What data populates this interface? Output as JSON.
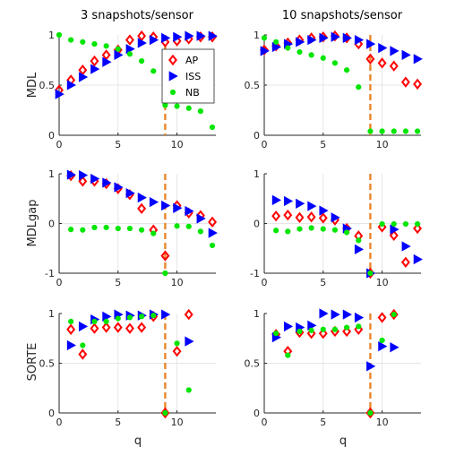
{
  "colors": {
    "AP": "#ff0000",
    "ISS": "#0000ff",
    "NB": "#00e600",
    "threshold": "#e8862b",
    "grid": "#e6e6e6",
    "axis": "#262626"
  },
  "legend": {
    "placement": "top-right of first panel",
    "entries": [
      {
        "name": "AP",
        "marker": "diamond"
      },
      {
        "name": "ISS",
        "marker": "triangle-right"
      },
      {
        "name": "NB",
        "marker": "circle"
      }
    ]
  },
  "columns": [
    {
      "title": "3 snapshots/sensor"
    },
    {
      "title": "10 snapshots/sensor"
    }
  ],
  "rows": [
    {
      "ylabel": "MDL"
    },
    {
      "ylabel": "MDLgap"
    },
    {
      "ylabel": "SORTE"
    }
  ],
  "xlabel": "q",
  "chart_data": [
    {
      "type": "scatter",
      "title": "3 snapshots/sensor",
      "ylabel": "MDL",
      "xlim": [
        0,
        13.3
      ],
      "ylim": [
        0,
        1
      ],
      "xticks": [
        0,
        5,
        10
      ],
      "yticks": [
        0,
        0.5,
        1
      ],
      "vline_x": 9,
      "show_legend": true,
      "series": [
        {
          "name": "AP",
          "points": [
            [
              0,
              0.45
            ],
            [
              1,
              0.55
            ],
            [
              2,
              0.65
            ],
            [
              3,
              0.74
            ],
            [
              4,
              0.8
            ],
            [
              5,
              0.85
            ],
            [
              6,
              0.95
            ],
            [
              7,
              0.99
            ],
            [
              8,
              0.98
            ],
            [
              9,
              0.93
            ],
            [
              10,
              0.94
            ],
            [
              11,
              0.96
            ],
            [
              12,
              0.98
            ],
            [
              13,
              0.98
            ]
          ]
        },
        {
          "name": "ISS",
          "points": [
            [
              0,
              0.41
            ],
            [
              1,
              0.5
            ],
            [
              2,
              0.58
            ],
            [
              3,
              0.66
            ],
            [
              4,
              0.73
            ],
            [
              5,
              0.8
            ],
            [
              6,
              0.86
            ],
            [
              7,
              0.92
            ],
            [
              8,
              0.95
            ],
            [
              9,
              0.97
            ],
            [
              10,
              0.98
            ],
            [
              11,
              0.99
            ],
            [
              12,
              0.99
            ],
            [
              13,
              0.99
            ]
          ]
        },
        {
          "name": "NB",
          "points": [
            [
              0,
              1.0
            ],
            [
              1,
              0.95
            ],
            [
              2,
              0.93
            ],
            [
              3,
              0.91
            ],
            [
              4,
              0.89
            ],
            [
              5,
              0.86
            ],
            [
              6,
              0.81
            ],
            [
              7,
              0.74
            ],
            [
              8,
              0.64
            ],
            [
              9,
              0.3
            ],
            [
              10,
              0.29
            ],
            [
              11,
              0.27
            ],
            [
              12,
              0.24
            ],
            [
              13,
              0.08
            ]
          ]
        }
      ]
    },
    {
      "type": "scatter",
      "title": "10 snapshots/sensor",
      "ylabel": "MDL",
      "xlim": [
        0,
        13.3
      ],
      "ylim": [
        0,
        1
      ],
      "xticks": [
        0,
        5,
        10
      ],
      "yticks": [
        0,
        0.5,
        1
      ],
      "vline_x": 9,
      "show_legend": false,
      "series": [
        {
          "name": "AP",
          "points": [
            [
              0,
              0.85
            ],
            [
              1,
              0.89
            ],
            [
              2,
              0.92
            ],
            [
              3,
              0.95
            ],
            [
              4,
              0.97
            ],
            [
              5,
              0.98
            ],
            [
              6,
              0.99
            ],
            [
              7,
              0.97
            ],
            [
              8,
              0.91
            ],
            [
              9,
              0.76
            ],
            [
              10,
              0.72
            ],
            [
              11,
              0.69
            ],
            [
              12,
              0.53
            ],
            [
              13,
              0.51
            ]
          ]
        },
        {
          "name": "ISS",
          "points": [
            [
              0,
              0.84
            ],
            [
              1,
              0.88
            ],
            [
              2,
              0.91
            ],
            [
              3,
              0.93
            ],
            [
              4,
              0.95
            ],
            [
              5,
              0.97
            ],
            [
              6,
              0.98
            ],
            [
              7,
              0.97
            ],
            [
              8,
              0.95
            ],
            [
              9,
              0.91
            ],
            [
              10,
              0.87
            ],
            [
              11,
              0.84
            ],
            [
              12,
              0.8
            ],
            [
              13,
              0.76
            ]
          ]
        },
        {
          "name": "NB",
          "points": [
            [
              0,
              0.97
            ],
            [
              1,
              0.93
            ],
            [
              2,
              0.87
            ],
            [
              3,
              0.83
            ],
            [
              4,
              0.8
            ],
            [
              5,
              0.77
            ],
            [
              6,
              0.72
            ],
            [
              7,
              0.65
            ],
            [
              8,
              0.48
            ],
            [
              9,
              0.04
            ],
            [
              10,
              0.04
            ],
            [
              11,
              0.04
            ],
            [
              12,
              0.04
            ],
            [
              13,
              0.04
            ]
          ]
        }
      ]
    },
    {
      "type": "scatter",
      "title": "",
      "ylabel": "MDLgap",
      "xlim": [
        0,
        13.3
      ],
      "ylim": [
        -1,
        1
      ],
      "xticks": [
        0,
        5,
        10
      ],
      "yticks": [
        -1,
        0,
        1
      ],
      "vline_x": 9,
      "show_legend": false,
      "series": [
        {
          "name": "AP",
          "points": [
            [
              1,
              0.96
            ],
            [
              2,
              0.85
            ],
            [
              3,
              0.85
            ],
            [
              4,
              0.8
            ],
            [
              5,
              0.7
            ],
            [
              6,
              0.58
            ],
            [
              7,
              0.3
            ],
            [
              8,
              -0.13
            ],
            [
              9,
              -0.65
            ],
            [
              10,
              0.36
            ],
            [
              11,
              0.21
            ],
            [
              12,
              0.16
            ],
            [
              13,
              0.03
            ]
          ]
        },
        {
          "name": "ISS",
          "points": [
            [
              1,
              0.98
            ],
            [
              2,
              0.97
            ],
            [
              3,
              0.9
            ],
            [
              4,
              0.82
            ],
            [
              5,
              0.73
            ],
            [
              6,
              0.61
            ],
            [
              7,
              0.52
            ],
            [
              8,
              0.43
            ],
            [
              9,
              0.36
            ],
            [
              10,
              0.31
            ],
            [
              11,
              0.25
            ],
            [
              12,
              0.1
            ],
            [
              13,
              -0.19
            ]
          ]
        },
        {
          "name": "NB",
          "points": [
            [
              1,
              -0.12
            ],
            [
              2,
              -0.13
            ],
            [
              3,
              -0.08
            ],
            [
              4,
              -0.08
            ],
            [
              5,
              -0.1
            ],
            [
              6,
              -0.1
            ],
            [
              7,
              -0.13
            ],
            [
              8,
              -0.2
            ],
            [
              9,
              -1.0
            ],
            [
              10,
              -0.05
            ],
            [
              11,
              -0.06
            ],
            [
              12,
              -0.16
            ],
            [
              13,
              -0.44
            ]
          ]
        }
      ]
    },
    {
      "type": "scatter",
      "title": "",
      "ylabel": "MDLgap",
      "xlim": [
        0,
        13.3
      ],
      "ylim": [
        -1,
        1
      ],
      "xticks": [
        0,
        5,
        10
      ],
      "yticks": [
        -1,
        0,
        1
      ],
      "vline_x": 9,
      "show_legend": false,
      "series": [
        {
          "name": "AP",
          "points": [
            [
              1,
              0.15
            ],
            [
              2,
              0.17
            ],
            [
              3,
              0.12
            ],
            [
              4,
              0.13
            ],
            [
              5,
              0.11
            ],
            [
              6,
              0.07
            ],
            [
              7,
              -0.1
            ],
            [
              8,
              -0.25
            ],
            [
              9,
              -1.0
            ],
            [
              10,
              -0.07
            ],
            [
              11,
              -0.24
            ],
            [
              12,
              -0.78
            ],
            [
              13,
              -0.1
            ]
          ]
        },
        {
          "name": "ISS",
          "points": [
            [
              1,
              0.47
            ],
            [
              2,
              0.45
            ],
            [
              3,
              0.4
            ],
            [
              4,
              0.35
            ],
            [
              5,
              0.26
            ],
            [
              6,
              0.12
            ],
            [
              7,
              -0.1
            ],
            [
              8,
              -0.52
            ],
            [
              9,
              -1.0
            ],
            [
              11,
              -0.12
            ],
            [
              12,
              -0.46
            ],
            [
              13,
              -0.72
            ]
          ]
        },
        {
          "name": "NB",
          "points": [
            [
              1,
              -0.14
            ],
            [
              2,
              -0.16
            ],
            [
              3,
              -0.11
            ],
            [
              4,
              -0.09
            ],
            [
              5,
              -0.11
            ],
            [
              6,
              -0.13
            ],
            [
              7,
              -0.18
            ],
            [
              8,
              -0.34
            ],
            [
              9,
              -1.0
            ],
            [
              10,
              -0.01
            ],
            [
              11,
              -0.01
            ],
            [
              12,
              -0.01
            ],
            [
              13,
              -0.01
            ]
          ]
        }
      ]
    },
    {
      "type": "scatter",
      "title": "",
      "ylabel": "SORTE",
      "xlim": [
        0,
        13.3
      ],
      "ylim": [
        0,
        1
      ],
      "xticks": [
        0,
        5,
        10
      ],
      "yticks": [
        0,
        0.5,
        1
      ],
      "vline_x": 9,
      "show_legend": false,
      "series": [
        {
          "name": "AP",
          "points": [
            [
              1,
              0.84
            ],
            [
              2,
              0.59
            ],
            [
              3,
              0.85
            ],
            [
              4,
              0.86
            ],
            [
              5,
              0.86
            ],
            [
              6,
              0.85
            ],
            [
              7,
              0.86
            ],
            [
              8,
              0.97
            ],
            [
              9,
              0.0
            ],
            [
              10,
              0.62
            ],
            [
              11,
              0.99
            ]
          ]
        },
        {
          "name": "ISS",
          "points": [
            [
              1,
              0.68
            ],
            [
              2,
              0.87
            ],
            [
              3,
              0.94
            ],
            [
              4,
              0.97
            ],
            [
              5,
              0.99
            ],
            [
              6,
              0.98
            ],
            [
              7,
              0.98
            ],
            [
              8,
              0.99
            ],
            [
              9,
              0.99
            ],
            [
              11,
              0.72
            ]
          ]
        },
        {
          "name": "NB",
          "points": [
            [
              1,
              0.92
            ],
            [
              2,
              0.68
            ],
            [
              3,
              0.92
            ],
            [
              4,
              0.92
            ],
            [
              5,
              0.95
            ],
            [
              6,
              0.96
            ],
            [
              7,
              0.97
            ],
            [
              8,
              0.98
            ],
            [
              9,
              0.0
            ],
            [
              10,
              0.7
            ],
            [
              11,
              0.23
            ]
          ]
        }
      ]
    },
    {
      "type": "scatter",
      "title": "",
      "ylabel": "SORTE",
      "xlim": [
        0,
        13.3
      ],
      "ylim": [
        0,
        1
      ],
      "xticks": [
        0,
        5,
        10
      ],
      "yticks": [
        0,
        0.5,
        1
      ],
      "vline_x": 9,
      "show_legend": false,
      "series": [
        {
          "name": "AP",
          "points": [
            [
              1,
              0.79
            ],
            [
              2,
              0.62
            ],
            [
              3,
              0.81
            ],
            [
              4,
              0.8
            ],
            [
              5,
              0.8
            ],
            [
              6,
              0.82
            ],
            [
              7,
              0.82
            ],
            [
              8,
              0.84
            ],
            [
              9,
              0.0
            ],
            [
              10,
              0.96
            ],
            [
              11,
              0.99
            ]
          ]
        },
        {
          "name": "ISS",
          "points": [
            [
              1,
              0.76
            ],
            [
              2,
              0.87
            ],
            [
              3,
              0.86
            ],
            [
              4,
              0.88
            ],
            [
              5,
              1.0
            ],
            [
              6,
              0.99
            ],
            [
              7,
              0.99
            ],
            [
              8,
              0.96
            ],
            [
              9,
              0.47
            ],
            [
              10,
              0.67
            ],
            [
              11,
              0.66
            ]
          ]
        },
        {
          "name": "NB",
          "points": [
            [
              1,
              0.8
            ],
            [
              2,
              0.58
            ],
            [
              3,
              0.82
            ],
            [
              4,
              0.83
            ],
            [
              5,
              0.84
            ],
            [
              6,
              0.84
            ],
            [
              7,
              0.86
            ],
            [
              8,
              0.87
            ],
            [
              9,
              0.0
            ],
            [
              10,
              0.73
            ],
            [
              11,
              0.99
            ]
          ]
        }
      ]
    }
  ]
}
